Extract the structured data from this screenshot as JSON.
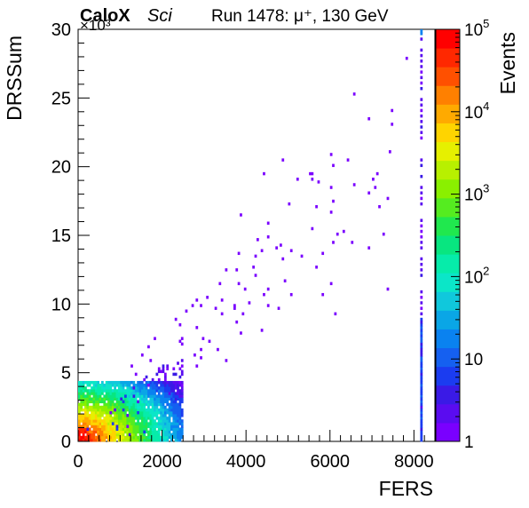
{
  "chart_data": {
    "type": "heatmap",
    "title_left": "CaloX",
    "title_italic": "Sci",
    "title_right": "Run 1478:   μ⁺, 130 GeV",
    "exponent_label": "×10³",
    "xlabel": "FERS",
    "ylabel": "DRSSum",
    "zlabel": "Events",
    "xlim": [
      0,
      8500
    ],
    "ylim": [
      0,
      30
    ],
    "x_ticks": [
      0,
      2000,
      4000,
      6000,
      8000
    ],
    "y_ticks": [
      0,
      5,
      10,
      15,
      20,
      25,
      30
    ],
    "z_scale": "log",
    "zlim": [
      1,
      100000
    ],
    "z_ticks": [
      {
        "base": "1",
        "exp": ""
      },
      {
        "base": "10",
        "exp": ""
      },
      {
        "base": "10",
        "exp": "2"
      },
      {
        "base": "10",
        "exp": "3"
      },
      {
        "base": "10",
        "exp": "4"
      },
      {
        "base": "10",
        "exp": "5"
      }
    ],
    "palette": [
      "#7a00ff",
      "#5a0cf0",
      "#3a1ae6",
      "#1b3cf0",
      "#1560f0",
      "#0a82f0",
      "#0aa6e6",
      "#10c8dc",
      "#0be6c8",
      "#06ecaa",
      "#08e680",
      "#20e84e",
      "#55ec20",
      "#8af000",
      "#b8f000",
      "#e6f000",
      "#ffd400",
      "#ffaa00",
      "#ff8000",
      "#ff5000",
      "#ff2800",
      "#ff0000"
    ],
    "bin_width": [
      50,
      0.2
    ],
    "regions": [
      {
        "name": "core",
        "description": "dense low-energy cluster",
        "x_range": [
          0,
          2500
        ],
        "y_range": [
          0,
          5
        ]
      },
      {
        "name": "band",
        "description": "sparse diagonal band",
        "x_range": [
          1000,
          7500
        ],
        "y_range": [
          2,
          22
        ]
      },
      {
        "name": "overflow",
        "description": "vertical stripe near FERS saturation",
        "x_value": 8150,
        "y_range": [
          0,
          30
        ]
      }
    ]
  }
}
